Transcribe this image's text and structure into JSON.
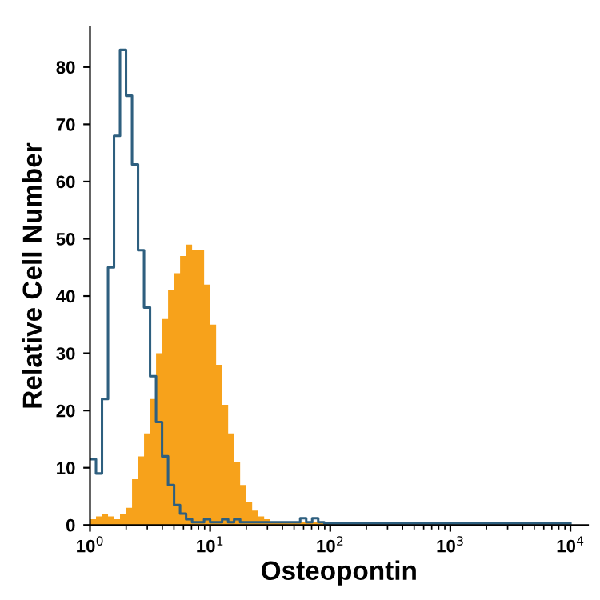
{
  "chart_data": {
    "type": "histogram",
    "xlabel": "Osteopontin",
    "ylabel": "Relative Cell Number",
    "log": "x",
    "bins": [
      1,
      1.122,
      1.259,
      1.413,
      1.585,
      1.778,
      1.995,
      2.239,
      2.512,
      2.818,
      3.162,
      3.548,
      3.981,
      4.467,
      5.012,
      5.623,
      6.31,
      7.079,
      7.943,
      8.913,
      10,
      11.22,
      12.59,
      14.13,
      15.85,
      17.78,
      19.95,
      22.39,
      25.12,
      28.18,
      31.62,
      35.48,
      39.81,
      44.67,
      50.12,
      56.23,
      63.1,
      70.79,
      79.43,
      89.13,
      100,
      112.2,
      125.9,
      141.3,
      158.5,
      10000
    ],
    "series": [
      {
        "color": "#f7a21b",
        "values": [
          1,
          1.5,
          2,
          1.5,
          1,
          2,
          3,
          8,
          12,
          16,
          22,
          30,
          36,
          41,
          44,
          47,
          49,
          48,
          48,
          42,
          35,
          28,
          21,
          16,
          11,
          7,
          4,
          2.5,
          1.5,
          1,
          0.5,
          0.5,
          0.5,
          0.5,
          0.5,
          0.5,
          0.5,
          0.5,
          0.5,
          0.5,
          0,
          0,
          0,
          0,
          0
        ]
      },
      {
        "type": "step",
        "color": "#2e5f7f",
        "x": [
          1,
          1.122,
          1.259,
          1.413,
          1.585,
          1.778,
          1.995,
          2.239,
          2.512,
          2.818,
          3.162,
          3.548,
          3.981,
          4.467,
          5.012,
          5.623,
          6.31,
          7.079,
          7.943,
          8.913,
          10,
          11.22,
          12.59,
          14.13,
          15.85,
          17.78,
          19.95,
          22.39,
          25.12,
          28.18,
          31.62,
          35.48,
          39.81,
          44.67,
          50.12,
          56.23,
          63.1,
          70.79,
          79.43,
          89.13,
          100,
          112.2,
          125.9,
          141.3,
          158.5,
          10000
        ],
        "values": [
          11.5,
          9,
          22,
          45,
          68,
          83,
          75,
          63,
          48,
          38,
          26,
          18,
          12,
          7,
          3.5,
          2,
          1,
          0.5,
          0.5,
          1,
          0.5,
          0.5,
          1,
          0.5,
          1,
          0.5,
          0.5,
          0.5,
          0.5,
          0.5,
          0.5,
          0.5,
          0.5,
          0.5,
          0.5,
          1.2,
          0.5,
          1.2,
          0.5,
          0.3,
          0.3,
          0.3,
          0.3,
          0.3,
          0.3,
          0.3
        ]
      }
    ],
    "xlim": [
      1,
      14000
    ],
    "xticks": [
      {
        "value": 1,
        "label": "10$^{0}$"
      },
      {
        "value": 10,
        "label": "10$^{1}$"
      },
      {
        "value": 100,
        "label": "10$^{2}$"
      },
      {
        "value": 1000,
        "label": "10$^{3}$"
      },
      {
        "value": 10000,
        "label": "10$^{4}$"
      }
    ],
    "ylim": [
      0,
      87
    ],
    "yticks": [
      0,
      10,
      20,
      30,
      40,
      50,
      60,
      70,
      80
    ],
    "grid": false,
    "legend": false
  }
}
